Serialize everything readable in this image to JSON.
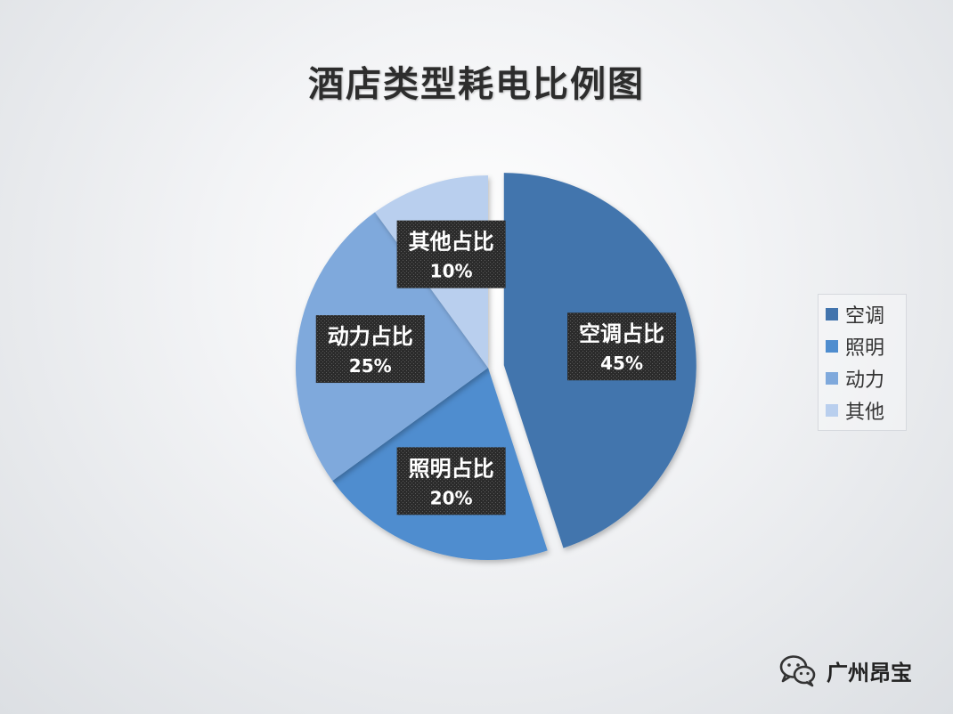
{
  "chart_data": {
    "type": "pie",
    "title": "酒店类型耗电比例图",
    "slices": [
      {
        "name": "空调",
        "value": 45,
        "data_label_line1": "空调占比",
        "data_label_line2": "45%",
        "color": "#4274AD",
        "exploded": true
      },
      {
        "name": "照明",
        "value": 20,
        "data_label_line1": "照明占比",
        "data_label_line2": "20%",
        "color": "#4F8DCF",
        "exploded": false
      },
      {
        "name": "动力",
        "value": 25,
        "data_label_line1": "动力占比",
        "data_label_line2": "25%",
        "color": "#7FA9DC",
        "exploded": false
      },
      {
        "name": "其他",
        "value": 10,
        "data_label_line1": "其他占比",
        "data_label_line2": "10%",
        "color": "#B9CFEE",
        "exploded": false
      }
    ],
    "legend_position": "right",
    "start_angle": "12 o'clock",
    "direction": "clockwise"
  },
  "watermark": {
    "icon": "wechat-icon",
    "text": "广州昂宝"
  }
}
